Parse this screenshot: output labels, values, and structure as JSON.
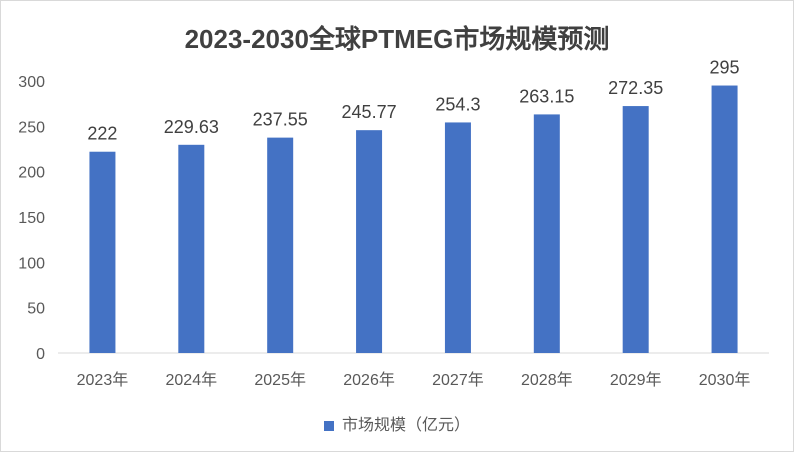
{
  "chart_data": {
    "type": "bar",
    "title": "2023-2030全球PTMEG市场规模预测",
    "categories": [
      "2023年",
      "2024年",
      "2025年",
      "2026年",
      "2027年",
      "2028年",
      "2029年",
      "2030年"
    ],
    "series": [
      {
        "name": "市场规模（亿元）",
        "values": [
          222,
          229.63,
          237.55,
          245.77,
          254.3,
          263.15,
          272.35,
          295
        ],
        "labels": [
          "222",
          "229.63",
          "237.55",
          "245.77",
          "254.3",
          "263.15",
          "272.35",
          "295"
        ]
      }
    ],
    "yticks": [
      0,
      50,
      100,
      150,
      200,
      250,
      300
    ],
    "ylim": [
      0,
      300
    ],
    "xlabel": "",
    "ylabel": "",
    "grid": false,
    "legend": "bottom",
    "bar_color": "#4472C4"
  }
}
